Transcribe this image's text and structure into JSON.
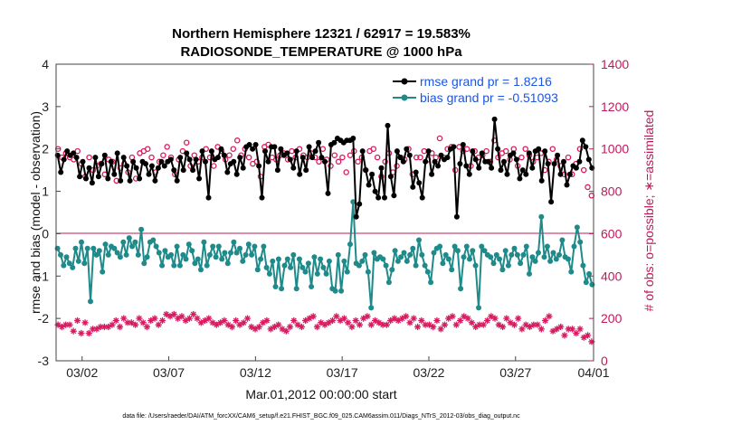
{
  "chart_data": {
    "type": "line",
    "title_line1": "Northern Hemisphere 12321 / 62917 = 19.583%",
    "title_line2": "RADIOSONDE_TEMPERATURE @ 1000 hPa",
    "ylabel_left": "rmse and bias (model - observation)",
    "ylabel_right": "# of obs: o=possible; ∗=assimilated",
    "xlabel": "Mar.01,2012 00:00:00 start",
    "footer": "data file: /Users/raeder/DAI/ATM_forcXX/CAM6_setup/f.e21.FHIST_BGC.f09_025.CAM6assim.011/Diags_NTrS_2012-03/obs_diag_output.nc",
    "ylim_left": [
      -3,
      4
    ],
    "yticks_left": [
      "-3",
      "-2",
      "-1",
      "0",
      "1",
      "2",
      "3",
      "4"
    ],
    "ylim_right": [
      0,
      1400
    ],
    "yticks_right": [
      "0",
      "200",
      "400",
      "600",
      "800",
      "1000",
      "1200",
      "1400"
    ],
    "xlim_days": [
      0.5,
      31.5
    ],
    "xticks": [
      {
        "label": "03/02",
        "day": 2
      },
      {
        "label": "03/07",
        "day": 7
      },
      {
        "label": "03/12",
        "day": 12
      },
      {
        "label": "03/17",
        "day": 17
      },
      {
        "label": "03/22",
        "day": 22
      },
      {
        "label": "03/27",
        "day": 27
      },
      {
        "label": "04/01",
        "day": 32
      }
    ],
    "legend": [
      {
        "label": "rmse grand pr = 1.8216",
        "color": "#000000"
      },
      {
        "label": "bias grand pr = -0.51093",
        "color": "#1f8a8a"
      }
    ],
    "series": [
      {
        "name": "rmse",
        "axis": "left",
        "color": "#000000",
        "values": [
          1.85,
          1.45,
          1.75,
          1.95,
          1.85,
          1.9,
          1.8,
          1.35,
          1.7,
          1.3,
          1.55,
          1.2,
          1.8,
          1.35,
          1.65,
          1.85,
          1.3,
          1.7,
          1.4,
          1.9,
          1.25,
          1.8,
          1.6,
          1.25,
          1.7,
          1.55,
          1.3,
          1.7,
          1.65,
          1.4,
          1.6,
          1.25,
          1.55,
          1.7,
          1.6,
          1.7,
          1.75,
          1.5,
          1.25,
          1.8,
          1.5,
          1.9,
          1.75,
          1.5,
          1.75,
          1.3,
          1.95,
          1.7,
          0.85,
          1.95,
          1.75,
          1.8,
          2.0,
          1.85,
          1.45,
          1.65,
          1.7,
          1.4,
          1.8,
          1.55,
          2.05,
          2.1,
          2.0,
          2.1,
          1.6,
          0.85,
          1.95,
          1.7,
          2.05,
          2.05,
          1.5,
          2.0,
          1.85,
          1.9,
          1.75,
          1.55,
          1.95,
          1.4,
          1.8,
          1.5,
          2.05,
          1.8,
          1.95,
          2.15,
          1.8,
          1.7,
          0.95,
          2.1,
          2.15,
          2.25,
          2.2,
          2.15,
          2.2,
          2.2,
          2.25,
          0.4,
          0.7,
          1.95,
          1.5,
          1.15,
          1.4,
          1.0,
          0.85,
          1.55,
          0.85,
          2.55,
          1.35,
          0.9,
          1.95,
          1.8,
          1.7,
          2.0,
          1.85,
          1.1,
          1.45,
          1.2,
          0.85,
          1.7,
          1.95,
          1.4,
          1.7,
          1.6,
          1.85,
          1.75,
          1.8,
          2.0,
          2.05,
          0.4,
          1.65,
          2.1,
          1.6,
          1.4,
          1.95,
          1.75,
          1.55,
          1.9,
          1.7,
          1.7,
          1.55,
          2.7,
          2.0,
          1.5,
          1.7,
          1.4,
          1.85,
          1.9,
          1.75,
          1.3,
          1.5,
          1.4,
          1.9,
          1.55,
          1.95,
          2.0,
          1.25,
          1.95,
          1.65,
          0.75,
          1.65,
          1.85,
          1.4,
          1.7,
          1.15,
          1.4,
          1.6,
          1.55,
          1.7,
          2.2,
          2.05,
          1.75,
          1.55
        ]
      },
      {
        "name": "bias",
        "axis": "left",
        "color": "#1f8a8a",
        "values": [
          -0.35,
          -0.5,
          -0.75,
          -0.55,
          -0.7,
          -0.8,
          -0.35,
          -0.65,
          -0.2,
          -0.7,
          -0.35,
          -1.6,
          -0.35,
          -0.5,
          -0.4,
          -0.9,
          -0.25,
          -0.5,
          -0.3,
          -0.35,
          -0.45,
          -0.55,
          -0.2,
          -0.5,
          -0.1,
          -0.3,
          -0.2,
          -0.5,
          0.1,
          -0.7,
          -0.55,
          -0.2,
          -0.15,
          -0.3,
          -0.45,
          -0.75,
          -0.4,
          -0.55,
          -0.5,
          -0.75,
          -0.3,
          -0.75,
          -0.5,
          -0.6,
          -0.25,
          -0.4,
          -0.7,
          -0.6,
          -0.85,
          -0.2,
          -0.75,
          -0.5,
          -0.3,
          -0.55,
          -0.3,
          -0.6,
          -0.45,
          -0.7,
          -0.45,
          -0.2,
          -0.45,
          -0.35,
          -0.65,
          -0.5,
          -0.25,
          -0.5,
          -0.3,
          -0.85,
          -0.6,
          -0.3,
          -0.8,
          -0.95,
          -0.65,
          -1.25,
          -0.6,
          -1.3,
          -0.75,
          -0.6,
          -0.8,
          -0.5,
          -1.3,
          -0.6,
          -0.8,
          -0.9,
          -0.7,
          -1.25,
          -0.55,
          -0.95,
          -0.6,
          -0.8,
          -0.95,
          -0.65,
          -1.3,
          -1.35,
          -0.5,
          -1.35,
          -0.65,
          -0.9,
          -0.25,
          0.75,
          -0.7,
          -0.75,
          -0.65,
          -0.5,
          -0.9,
          -1.75,
          -0.45,
          -0.6,
          -0.55,
          -0.6,
          -0.75,
          -1.15,
          -0.85,
          -0.4,
          -0.65,
          -0.55,
          -0.45,
          -0.65,
          -0.5,
          -0.35,
          -0.75,
          -0.15,
          -0.5,
          -0.75,
          -0.9,
          -1.15,
          -0.45,
          -0.35,
          -0.3,
          -0.7,
          -0.5,
          -0.6,
          -0.85,
          -0.3,
          -0.4,
          -1.3,
          -0.55,
          -0.3,
          -0.6,
          -0.4,
          -0.75,
          -1.75,
          -0.3,
          -0.4,
          -0.5,
          -0.55,
          -0.7,
          -0.5,
          -0.6,
          -0.85,
          -0.4,
          -0.75,
          -0.5,
          -0.35,
          -0.5,
          -0.7,
          -0.5,
          -0.3,
          -0.95,
          -0.55,
          -0.65,
          -0.45,
          0.4,
          -0.55,
          -0.3,
          -0.65,
          -0.45,
          -0.6,
          -0.5,
          -0.15,
          -0.55,
          -0.6,
          -0.9,
          -0.3,
          0.15,
          -0.2,
          -0.75,
          -1.15,
          -0.95,
          -1.2
        ]
      },
      {
        "name": "possible",
        "axis": "right",
        "color": "#d81b60",
        "marker": "o",
        "values": [
          1000,
          960,
          980,
          960,
          950,
          990,
          930,
          870,
          960,
          900,
          920,
          930,
          880,
          950,
          940,
          850,
          910,
          930,
          890,
          960,
          860,
          980,
          990,
          1000,
          960,
          890,
          940,
          970,
          1010,
          960,
          880,
          950,
          990,
          1030,
          920,
          970,
          940,
          960,
          1000,
          960,
          920,
          1010,
          990,
          950,
          970,
          1000,
          1040,
          970,
          1000,
          960,
          930,
          940,
          870,
          1010,
          1020,
          960,
          950,
          970,
          980,
          950,
          990,
          960,
          1000,
          970,
          960,
          980,
          960,
          940,
          1000,
          950,
          920,
          970,
          940,
          960,
          890,
          970,
          990,
          940,
          960,
          900,
          990,
          1000,
          960,
          870,
          940,
          980,
          890,
          920,
          960,
          950,
          1000,
          880,
          960,
          960,
          990,
          950,
          980,
          960,
          1050,
          960,
          1000,
          1010,
          900,
          1010,
          990,
          1000,
          920,
          990,
          960,
          970,
          990,
          940,
          1040,
          960,
          980,
          990,
          950,
          1000,
          920,
          960,
          1000,
          970,
          940,
          960,
          980,
          900,
          940,
          1000,
          950,
          920,
          880,
          960,
          880,
          930,
          1000,
          900,
          820,
          780
        ]
      },
      {
        "name": "assimilated",
        "axis": "right",
        "color": "#d81b60",
        "marker": "*",
        "values": [
          170,
          160,
          170,
          170,
          140,
          190,
          130,
          180,
          130,
          150,
          150,
          160,
          160,
          160,
          170,
          190,
          160,
          200,
          180,
          180,
          170,
          200,
          180,
          160,
          190,
          200,
          170,
          190,
          220,
          210,
          220,
          200,
          210,
          190,
          200,
          220,
          200,
          180,
          190,
          200,
          180,
          170,
          180,
          190,
          170,
          160,
          190,
          170,
          180,
          200,
          160,
          150,
          160,
          180,
          190,
          150,
          160,
          170,
          150,
          140,
          160,
          190,
          170,
          160,
          190,
          200,
          210,
          160,
          180,
          170,
          180,
          190,
          210,
          190,
          200,
          180,
          160,
          190,
          170,
          200,
          210,
          170,
          190,
          180,
          170,
          170,
          190,
          200,
          190,
          200,
          210,
          180,
          200,
          160,
          190,
          170,
          170,
          160,
          190,
          150,
          170,
          200,
          210,
          170,
          190,
          210,
          200,
          180,
          160,
          170,
          170,
          190,
          210,
          200,
          170,
          160,
          200,
          180,
          170,
          200,
          150,
          170,
          160,
          170,
          170,
          150,
          190,
          210,
          140,
          150,
          160,
          120,
          150,
          150,
          130,
          150,
          110,
          120,
          90
        ]
      }
    ]
  }
}
